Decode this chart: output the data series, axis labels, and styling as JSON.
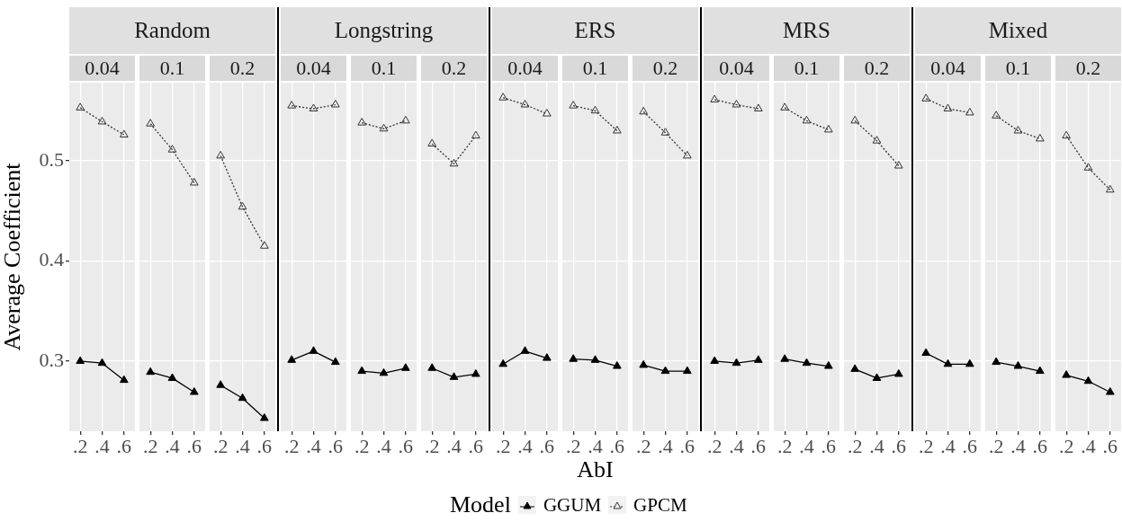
{
  "chart_data": [
    {
      "type": "line",
      "subtitle": "0.04",
      "ylabel": "Average Coefficient",
      "legend": "bottom",
      "legend_title": "Model",
      "marker": "triangle",
      "grid": true,
      "categories": [
        ".2",
        ".4",
        ".6"
      ],
      "ylim": [
        0.23,
        0.578
      ],
      "yticks": [
        0.3,
        0.4,
        0.5
      ],
      "series": [
        {
          "name": "GGUM",
          "color": "#000000",
          "line_style": "solid",
          "values": [
            0.3,
            0.298,
            0.281
          ]
        },
        {
          "name": "GPCM",
          "color": "#333333",
          "line_style": "dotted",
          "values": [
            0.553,
            0.539,
            0.526
          ]
        }
      ]
    },
    {
      "type": "line",
      "title": "Random",
      "subtitle": "0.1",
      "marker": "triangle",
      "grid": true,
      "tick_labels": "x",
      "categories": [
        ".2",
        ".4",
        ".6"
      ],
      "ylim": [
        0.23,
        0.578
      ],
      "yticks": [
        0.3,
        0.4,
        0.5
      ],
      "series": [
        {
          "color": "#000000",
          "line_style": "solid",
          "values": [
            0.289,
            0.283,
            0.269
          ]
        },
        {
          "color": "#333333",
          "line_style": "dotted",
          "values": [
            0.537,
            0.511,
            0.478
          ]
        }
      ]
    },
    {
      "type": "line",
      "subtitle": "0.2",
      "marker": "triangle",
      "grid": true,
      "tick_labels": "x",
      "categories": [
        ".2",
        ".4",
        ".6"
      ],
      "ylim": [
        0.23,
        0.578
      ],
      "yticks": [
        0.3,
        0.4,
        0.5
      ],
      "series": [
        {
          "color": "#000000",
          "line_style": "solid",
          "values": [
            0.276,
            0.263,
            0.243
          ]
        },
        {
          "color": "#333333",
          "line_style": "dotted",
          "values": [
            0.505,
            0.454,
            0.415
          ]
        }
      ]
    },
    {
      "type": "line",
      "subtitle": "0.04",
      "marker": "triangle",
      "grid": true,
      "tick_labels": "x",
      "categories": [
        ".2",
        ".4",
        ".6"
      ],
      "ylim": [
        0.23,
        0.578
      ],
      "yticks": [
        0.3,
        0.4,
        0.5
      ],
      "series": [
        {
          "color": "#000000",
          "line_style": "solid",
          "values": [
            0.301,
            0.31,
            0.299
          ]
        },
        {
          "color": "#333333",
          "line_style": "dotted",
          "values": [
            0.555,
            0.552,
            0.556
          ]
        }
      ]
    },
    {
      "type": "line",
      "title": "Longstring",
      "subtitle": "0.1",
      "marker": "triangle",
      "grid": true,
      "tick_labels": "x",
      "categories": [
        ".2",
        ".4",
        ".6"
      ],
      "ylim": [
        0.23,
        0.578
      ],
      "yticks": [
        0.3,
        0.4,
        0.5
      ],
      "series": [
        {
          "color": "#000000",
          "line_style": "solid",
          "values": [
            0.29,
            0.288,
            0.293
          ]
        },
        {
          "color": "#333333",
          "line_style": "dotted",
          "values": [
            0.538,
            0.532,
            0.54
          ]
        }
      ]
    },
    {
      "type": "line",
      "subtitle": "0.2",
      "marker": "triangle",
      "grid": true,
      "tick_labels": "x",
      "categories": [
        ".2",
        ".4",
        ".6"
      ],
      "ylim": [
        0.23,
        0.578
      ],
      "yticks": [
        0.3,
        0.4,
        0.5
      ],
      "series": [
        {
          "color": "#000000",
          "line_style": "solid",
          "values": [
            0.293,
            0.284,
            0.287
          ]
        },
        {
          "color": "#333333",
          "line_style": "dotted",
          "values": [
            0.517,
            0.497,
            0.525
          ]
        }
      ]
    },
    {
      "type": "line",
      "subtitle": "0.04",
      "marker": "triangle",
      "grid": true,
      "tick_labels": "x",
      "categories": [
        ".2",
        ".4",
        ".6"
      ],
      "ylim": [
        0.23,
        0.578
      ],
      "yticks": [
        0.3,
        0.4,
        0.5
      ],
      "series": [
        {
          "color": "#000000",
          "line_style": "solid",
          "values": [
            0.297,
            0.31,
            0.303
          ]
        },
        {
          "color": "#333333",
          "line_style": "dotted",
          "values": [
            0.563,
            0.556,
            0.547
          ]
        }
      ]
    },
    {
      "type": "line",
      "title": "ERS",
      "subtitle": "0.1",
      "xlabel": "AbI",
      "marker": "triangle",
      "grid": true,
      "tick_labels": "x",
      "categories": [
        ".2",
        ".4",
        ".6"
      ],
      "ylim": [
        0.23,
        0.578
      ],
      "yticks": [
        0.3,
        0.4,
        0.5
      ],
      "series": [
        {
          "color": "#000000",
          "line_style": "solid",
          "values": [
            0.302,
            0.301,
            0.295
          ]
        },
        {
          "color": "#333333",
          "line_style": "dotted",
          "values": [
            0.555,
            0.55,
            0.53
          ]
        }
      ]
    },
    {
      "type": "line",
      "subtitle": "0.2",
      "marker": "triangle",
      "grid": true,
      "tick_labels": "x",
      "categories": [
        ".2",
        ".4",
        ".6"
      ],
      "ylim": [
        0.23,
        0.578
      ],
      "yticks": [
        0.3,
        0.4,
        0.5
      ],
      "series": [
        {
          "color": "#000000",
          "line_style": "solid",
          "values": [
            0.296,
            0.29,
            0.29
          ]
        },
        {
          "color": "#333333",
          "line_style": "dotted",
          "values": [
            0.549,
            0.528,
            0.505
          ]
        }
      ]
    },
    {
      "type": "line",
      "subtitle": "0.04",
      "marker": "triangle",
      "grid": true,
      "tick_labels": "x",
      "categories": [
        ".2",
        ".4",
        ".6"
      ],
      "ylim": [
        0.23,
        0.578
      ],
      "yticks": [
        0.3,
        0.4,
        0.5
      ],
      "series": [
        {
          "color": "#000000",
          "line_style": "solid",
          "values": [
            0.3,
            0.298,
            0.301
          ]
        },
        {
          "color": "#333333",
          "line_style": "dotted",
          "values": [
            0.561,
            0.556,
            0.552
          ]
        }
      ]
    },
    {
      "type": "line",
      "title": "MRS",
      "subtitle": "0.1",
      "marker": "triangle",
      "grid": true,
      "tick_labels": "x",
      "categories": [
        ".2",
        ".4",
        ".6"
      ],
      "ylim": [
        0.23,
        0.578
      ],
      "yticks": [
        0.3,
        0.4,
        0.5
      ],
      "series": [
        {
          "color": "#000000",
          "line_style": "solid",
          "values": [
            0.302,
            0.298,
            0.295
          ]
        },
        {
          "color": "#333333",
          "line_style": "dotted",
          "values": [
            0.553,
            0.54,
            0.531
          ]
        }
      ]
    },
    {
      "type": "line",
      "subtitle": "0.2",
      "marker": "triangle",
      "grid": true,
      "tick_labels": "x",
      "categories": [
        ".2",
        ".4",
        ".6"
      ],
      "ylim": [
        0.23,
        0.578
      ],
      "yticks": [
        0.3,
        0.4,
        0.5
      ],
      "series": [
        {
          "color": "#000000",
          "line_style": "solid",
          "values": [
            0.292,
            0.283,
            0.287
          ]
        },
        {
          "color": "#333333",
          "line_style": "dotted",
          "values": [
            0.54,
            0.52,
            0.495
          ]
        }
      ]
    },
    {
      "type": "line",
      "subtitle": "0.04",
      "marker": "triangle",
      "grid": true,
      "tick_labels": "x",
      "categories": [
        ".2",
        ".4",
        ".6"
      ],
      "ylim": [
        0.23,
        0.578
      ],
      "yticks": [
        0.3,
        0.4,
        0.5
      ],
      "series": [
        {
          "color": "#000000",
          "line_style": "solid",
          "values": [
            0.308,
            0.297,
            0.297
          ]
        },
        {
          "color": "#333333",
          "line_style": "dotted",
          "values": [
            0.562,
            0.552,
            0.548
          ]
        }
      ]
    },
    {
      "type": "line",
      "title": "Mixed",
      "subtitle": "0.1",
      "marker": "triangle",
      "grid": true,
      "tick_labels": "x",
      "categories": [
        ".2",
        ".4",
        ".6"
      ],
      "ylim": [
        0.23,
        0.578
      ],
      "yticks": [
        0.3,
        0.4,
        0.5
      ],
      "series": [
        {
          "color": "#000000",
          "line_style": "solid",
          "values": [
            0.299,
            0.295,
            0.29
          ]
        },
        {
          "color": "#333333",
          "line_style": "dotted",
          "values": [
            0.545,
            0.53,
            0.522
          ]
        }
      ]
    },
    {
      "type": "line",
      "subtitle": "0.2",
      "marker": "triangle",
      "grid": true,
      "tick_labels": "x",
      "categories": [
        ".2",
        ".4",
        ".6"
      ],
      "ylim": [
        0.23,
        0.578
      ],
      "yticks": [
        0.3,
        0.4,
        0.5
      ],
      "series": [
        {
          "color": "#000000",
          "line_style": "solid",
          "values": [
            0.286,
            0.28,
            0.269
          ]
        },
        {
          "color": "#333333",
          "line_style": "dotted",
          "values": [
            0.525,
            0.493,
            0.471
          ]
        }
      ]
    }
  ]
}
